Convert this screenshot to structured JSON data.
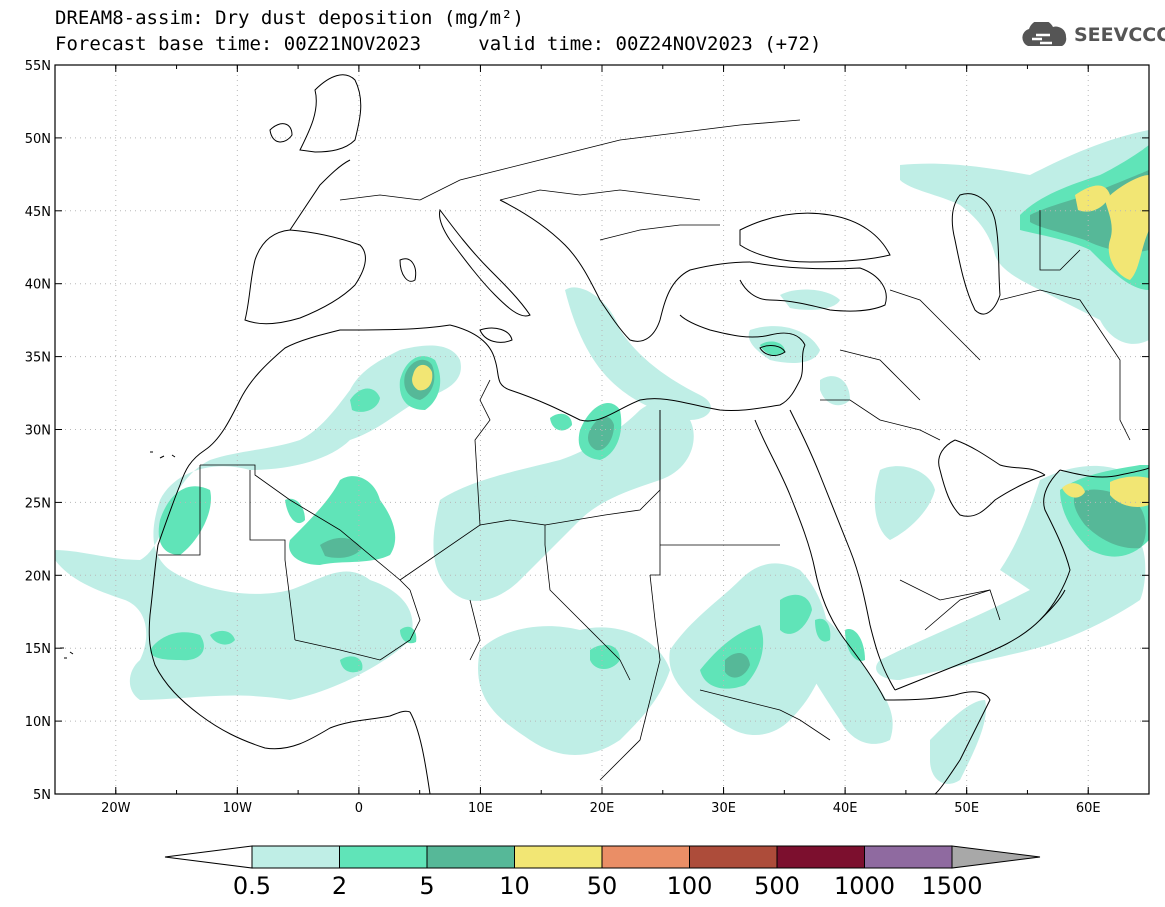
{
  "title": {
    "line1": "DREAM8-assim: Dry dust deposition (mg/m²)",
    "forecast_base": "Forecast base time: 00Z21NOV2023",
    "valid": "valid time: 00Z24NOV2023 (+72)"
  },
  "logo": {
    "text": "SEEVCCC",
    "icon": "cloud-icon"
  },
  "map": {
    "lon_range": [
      -25,
      65
    ],
    "lat_range": [
      5,
      55
    ],
    "lon_ticks": [
      {
        "v": -20,
        "label": "20W"
      },
      {
        "v": -10,
        "label": "10W"
      },
      {
        "v": 0,
        "label": "0"
      },
      {
        "v": 10,
        "label": "10E"
      },
      {
        "v": 20,
        "label": "20E"
      },
      {
        "v": 30,
        "label": "30E"
      },
      {
        "v": 40,
        "label": "40E"
      },
      {
        "v": 50,
        "label": "50E"
      },
      {
        "v": 60,
        "label": "60E"
      }
    ],
    "lat_ticks": [
      {
        "v": 5,
        "label": "5N"
      },
      {
        "v": 10,
        "label": "10N"
      },
      {
        "v": 15,
        "label": "15N"
      },
      {
        "v": 20,
        "label": "20N"
      },
      {
        "v": 25,
        "label": "25N"
      },
      {
        "v": 30,
        "label": "30N"
      },
      {
        "v": 35,
        "label": "35N"
      },
      {
        "v": 40,
        "label": "40N"
      },
      {
        "v": 45,
        "label": "45N"
      },
      {
        "v": 50,
        "label": "50N"
      },
      {
        "v": 55,
        "label": "55N"
      }
    ],
    "grid": true
  },
  "colorbar": {
    "labels": [
      "0.5",
      "2",
      "5",
      "10",
      "50",
      "100",
      "500",
      "1000",
      "1500"
    ],
    "colors": [
      "#bfeee6",
      "#60e4b8",
      "#56b898",
      "#f2e674",
      "#ea8e66",
      "#ad4c3a",
      "#7c0f2e",
      "#8f6aa0",
      "#a8a8a8"
    ],
    "under_color": "#ffffff"
  },
  "fields": {
    "colors": {
      "c1": "#bfeee6",
      "c2": "#60e4b8",
      "c3": "#56b898",
      "c4": "#f2e674"
    }
  }
}
